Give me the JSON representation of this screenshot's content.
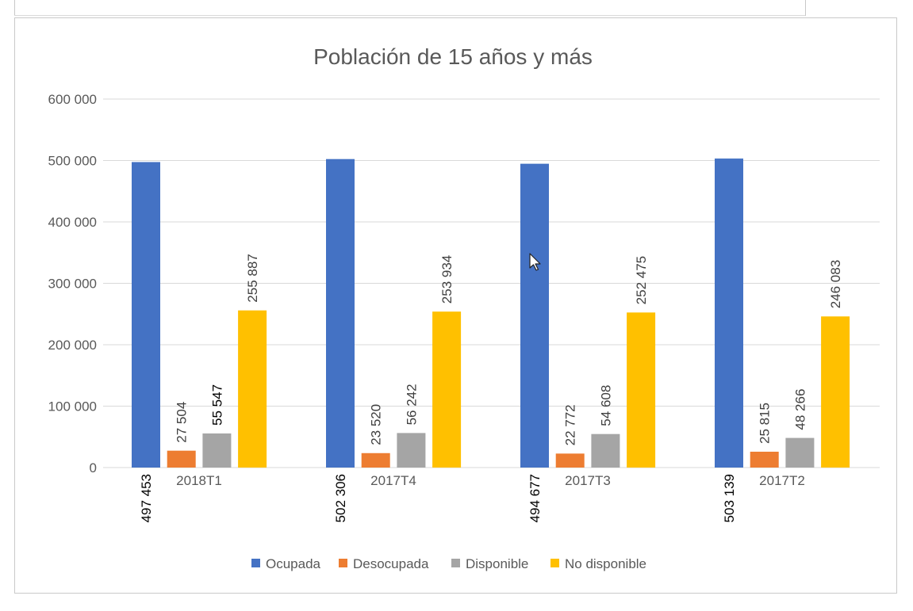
{
  "chart_data": {
    "type": "bar",
    "title": "Población de 15 años y más",
    "categories": [
      "2018T1",
      "2017T4",
      "2017T3",
      "2017T2"
    ],
    "series": [
      {
        "name": "Ocupada",
        "color": "#4472C4",
        "values": [
          497453,
          502306,
          494677,
          503139
        ],
        "labels": [
          "497 453",
          "502 306",
          "494 677",
          "503 139"
        ]
      },
      {
        "name": "Desocupada",
        "color": "#ED7D31",
        "values": [
          27504,
          23520,
          22772,
          25815
        ],
        "labels": [
          "27 504",
          "23 520",
          "22 772",
          "25 815"
        ]
      },
      {
        "name": "Disponible",
        "color": "#A5A5A5",
        "values": [
          55547,
          56242,
          54608,
          48266
        ],
        "labels": [
          "55 547",
          "56 242",
          "54 608",
          "48 266"
        ]
      },
      {
        "name": "No disponible",
        "color": "#FFC000",
        "values": [
          255887,
          253934,
          252475,
          246083
        ],
        "labels": [
          "255 887",
          "253 934",
          "252 475",
          "246 083"
        ]
      }
    ],
    "ylim": [
      0,
      600000
    ],
    "yticks": [
      0,
      100000,
      200000,
      300000,
      400000,
      500000,
      600000
    ],
    "ytick_labels": [
      "0",
      "100 000",
      "200 000",
      "300 000",
      "400 000",
      "500 000",
      "600 000"
    ],
    "grid": true,
    "legend_position": "bottom",
    "xlabel": "",
    "ylabel": ""
  }
}
